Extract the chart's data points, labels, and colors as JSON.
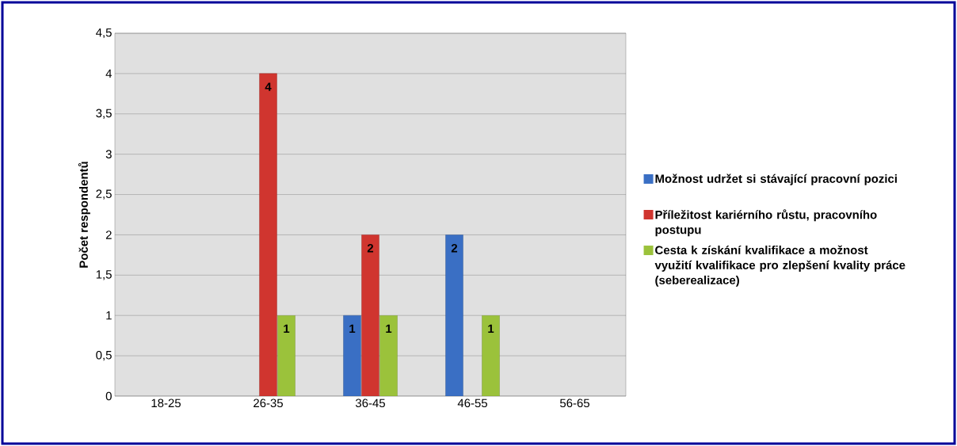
{
  "chart_data": {
    "type": "bar",
    "ylabel": "Počet respondentů",
    "categories": [
      "18-25",
      "26-35",
      "36-45",
      "46-55",
      "56-65"
    ],
    "series": [
      {
        "name": "Možnost udržet si stávající pracovní pozici",
        "color": "#3a6fc4",
        "values": [
          null,
          null,
          1,
          2,
          null
        ]
      },
      {
        "name": "Příležitost kariérního růstu, pracovního postupu",
        "color": "#d0352f",
        "values": [
          null,
          4,
          2,
          null,
          null
        ]
      },
      {
        "name": "Cesta k získání kvalifikace a možnost využití kvalifikace pro zlepšení kvality práce (seberealizace)",
        "color": "#9bc23b",
        "values": [
          null,
          1,
          1,
          1,
          null
        ]
      }
    ],
    "ylim": [
      0,
      4.5
    ],
    "yticks": [
      {
        "value": 0,
        "label": "0"
      },
      {
        "value": 0.5,
        "label": "0,5"
      },
      {
        "value": 1,
        "label": "1"
      },
      {
        "value": 1.5,
        "label": "1,5"
      },
      {
        "value": 2,
        "label": "2"
      },
      {
        "value": 2.5,
        "label": "2,5"
      },
      {
        "value": 3,
        "label": "3"
      },
      {
        "value": 3.5,
        "label": "3,5"
      },
      {
        "value": 4,
        "label": "4"
      },
      {
        "value": 4.5,
        "label": "4,5"
      }
    ],
    "grid": "y",
    "legend": "right",
    "data_labels": true
  }
}
